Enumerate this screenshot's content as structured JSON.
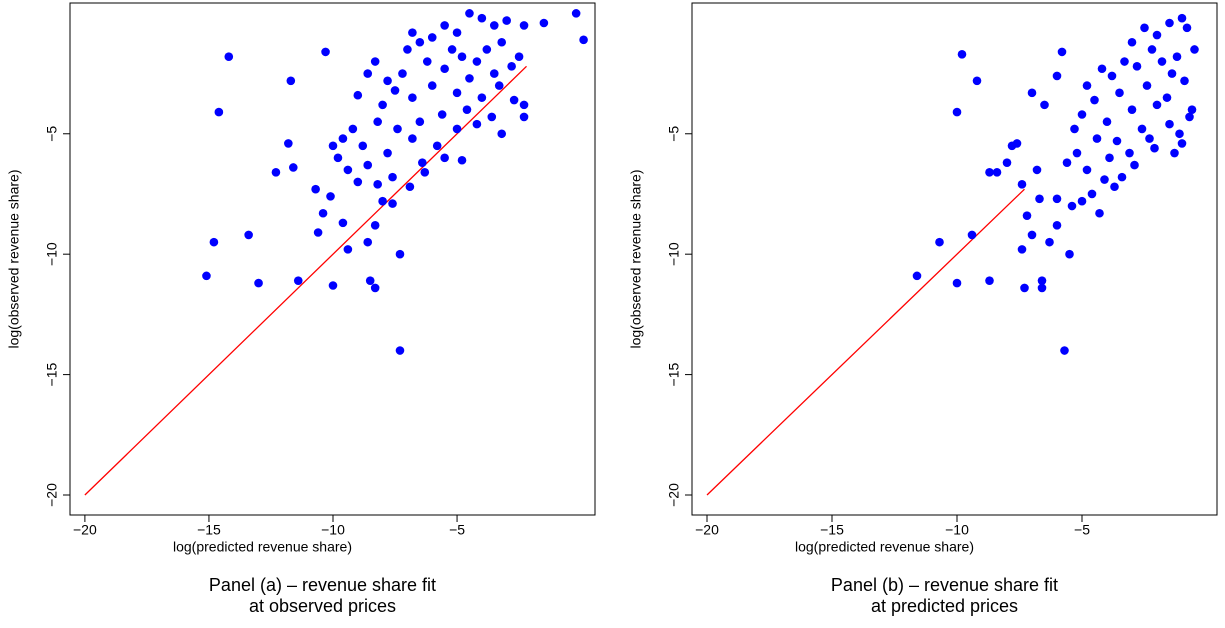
{
  "chart_data": [
    {
      "type": "scatter",
      "x_label": "log(predicted revenue share)",
      "y_label": "log(observed revenue share)",
      "caption": [
        "Panel (a) – revenue share fit",
        "at observed prices"
      ],
      "xlim": [
        -20.6,
        0.56
      ],
      "ylim": [
        -20.83,
        0.43
      ],
      "xticks": [
        {
          "value": -20,
          "label": "−20"
        },
        {
          "value": -15,
          "label": "−15"
        },
        {
          "value": -10,
          "label": "−10"
        },
        {
          "value": -5,
          "label": "−5"
        }
      ],
      "yticks": [
        {
          "value": -20,
          "label": "−20"
        },
        {
          "value": -15,
          "label": "−15"
        },
        {
          "value": -10,
          "label": "−10"
        },
        {
          "value": -5,
          "label": "−5"
        }
      ],
      "color": "#0000ff",
      "x": [
        -14.2,
        -14.6,
        -14.8,
        -15.1,
        -13.4,
        -13.0,
        -11.7,
        -11.8,
        -11.6,
        -11.4,
        -12.3,
        -10.3,
        -10.0,
        -7.3,
        -7.3,
        -8.5,
        -8.3,
        -9.4,
        -8.6,
        -8.3,
        -10.6,
        -10.4,
        -10.7,
        -10.1,
        -9.6,
        -0.2,
        0.1,
        -1.5,
        -2.3,
        -2.3,
        -2.3,
        -3.2,
        -4.8,
        -6.3,
        -6.9,
        -7.6,
        -4.5,
        -4,
        -3.5,
        -3,
        -5,
        -5.5,
        -6,
        -6.5,
        -7,
        -6.8,
        -5.2,
        -4.8,
        -4.2,
        -3.8,
        -3.2,
        -2.8,
        -2.5,
        -3.5,
        -4.5,
        -5.5,
        -6.2,
        -7.2,
        -7.8,
        -8.3,
        -8.6,
        -9,
        -8,
        -7.5,
        -6.8,
        -6,
        -5,
        -4,
        -3.3,
        -2.7,
        -4.6,
        -5.6,
        -6.5,
        -7.4,
        -8.2,
        -9.2,
        -9.6,
        -8.8,
        -7.8,
        -6.8,
        -5.8,
        -5,
        -4.2,
        -3.6,
        -9.8,
        -9.4,
        -8.6,
        -7.6,
        -6.4,
        -5.5,
        -10,
        -8.2,
        -8.0,
        -9.0
      ],
      "values": [
        -1.8,
        -4.1,
        -9.5,
        -10.9,
        -9.2,
        -11.2,
        -2.8,
        -5.4,
        -6.4,
        -11.1,
        -6.6,
        -1.6,
        -11.3,
        -14.0,
        -10.0,
        -11.1,
        -11.4,
        -9.8,
        -9.5,
        -8.8,
        -9.1,
        -8.3,
        -7.3,
        -7.6,
        -8.7,
        0.0,
        -1.1,
        -0.4,
        -0.5,
        -3.8,
        -4.3,
        -5.0,
        -6.1,
        -6.6,
        -7.2,
        -7.9,
        0,
        -0.2,
        -0.5,
        -0.3,
        -0.8,
        -0.5,
        -1,
        -1.2,
        -1.5,
        -0.8,
        -1.5,
        -1.8,
        -2.0,
        -1.5,
        -1.2,
        -2.2,
        -1.8,
        -2.5,
        -2.7,
        -2.3,
        -2.0,
        -2.5,
        -2.8,
        -2.0,
        -2.5,
        -3.4,
        -3.8,
        -3.2,
        -3.5,
        -3.0,
        -3.3,
        -3.5,
        -3.0,
        -3.6,
        -4.0,
        -4.2,
        -4.5,
        -4.8,
        -4.5,
        -4.8,
        -5.2,
        -5.5,
        -5.8,
        -5.2,
        -5.5,
        -4.8,
        -4.6,
        -4.3,
        -6.0,
        -6.5,
        -6.3,
        -6.8,
        -6.2,
        -6.0,
        -5.5,
        -7.1,
        -7.8,
        -7.0
      ],
      "reference_line": {
        "x": [
          -20,
          -2.2
        ],
        "y": [
          -20,
          -2.2
        ],
        "color": "#ff0000"
      }
    },
    {
      "type": "scatter",
      "x_label": "log(predicted revenue share)",
      "y_label": "log(observed revenue share)",
      "caption": [
        "Panel (b) – revenue share fit",
        "at predicted prices"
      ],
      "xlim": [
        -20.6,
        0.4
      ],
      "ylim": [
        -20.83,
        0.43
      ],
      "xticks": [
        {
          "value": -20,
          "label": "−20"
        },
        {
          "value": -15,
          "label": "−15"
        },
        {
          "value": -10,
          "label": "−10"
        },
        {
          "value": -5,
          "label": "−5"
        }
      ],
      "yticks": [
        {
          "value": -20,
          "label": "−20"
        },
        {
          "value": -15,
          "label": "−15"
        },
        {
          "value": -10,
          "label": "−10"
        },
        {
          "value": -5,
          "label": "−5"
        }
      ],
      "color": "#0000ff",
      "x": [
        -9.8,
        -10.0,
        -9.2,
        -10.7,
        -11.6,
        -10.0,
        -9.4,
        -8.7,
        -7.0,
        -5.7,
        -5.5,
        -7.3,
        -6.6,
        -6.6,
        -7.4,
        -7.2,
        -7.0,
        -6.3,
        -6.0,
        -8.7,
        -8.4,
        -8.0,
        -7.4,
        -7.8,
        -7.6,
        -6.5,
        -6.0,
        -5.8,
        -6.8,
        -6.7,
        -6.0,
        -1,
        -0.8,
        -1.5,
        -2,
        -2.5,
        -3,
        -0.5,
        -1.2,
        -1.8,
        -2.2,
        -2.8,
        -3.3,
        -3.8,
        -4.2,
        -4.8,
        -0.9,
        -1.4,
        -2.4,
        -3.5,
        -4.5,
        -5,
        -5.3,
        -4,
        -3,
        -2,
        -1.6,
        -0.7,
        -1.1,
        -2.6,
        -3.6,
        -4.4,
        -5.2,
        -5.6,
        -4.8,
        -3.9,
        -3.1,
        -2.3,
        -1.5,
        -1.0,
        -0.6,
        -2.9,
        -3.4,
        -4.1,
        -4.6,
        -5.0,
        -5.4,
        -4.3,
        -3.7,
        -2.1,
        -1.3
      ],
      "values": [
        -1.7,
        -4.1,
        -2.8,
        -9.5,
        -10.9,
        -11.2,
        -9.2,
        -11.1,
        -3.3,
        -14.0,
        -10.0,
        -11.4,
        -11.4,
        -11.1,
        -9.8,
        -8.4,
        -9.2,
        -9.5,
        -8.8,
        -6.6,
        -6.6,
        -6.2,
        -7.1,
        -5.5,
        -5.4,
        -3.8,
        -2.6,
        -1.6,
        -6.5,
        -7.7,
        -7.7,
        -0.2,
        -0.6,
        -0.4,
        -0.9,
        -0.6,
        -1.2,
        -1.5,
        -1.8,
        -2.0,
        -1.5,
        -2.2,
        -2.0,
        -2.6,
        -2.3,
        -3.0,
        -2.8,
        -2.5,
        -3.0,
        -3.3,
        -3.6,
        -4.2,
        -4.8,
        -4.5,
        -4.0,
        -3.8,
        -3.5,
        -4.3,
        -5.0,
        -4.8,
        -5.3,
        -5.2,
        -5.8,
        -6.2,
        -6.5,
        -6.0,
        -5.8,
        -5.2,
        -4.6,
        -5.4,
        -4.0,
        -6.3,
        -6.8,
        -6.9,
        -7.5,
        -7.8,
        -8.0,
        -8.3,
        -7.2,
        -5.6,
        -5.8
      ],
      "reference_line": {
        "x": [
          -20,
          -7.3
        ],
        "y": [
          -20,
          -7.3
        ],
        "color": "#ff0000"
      }
    }
  ]
}
